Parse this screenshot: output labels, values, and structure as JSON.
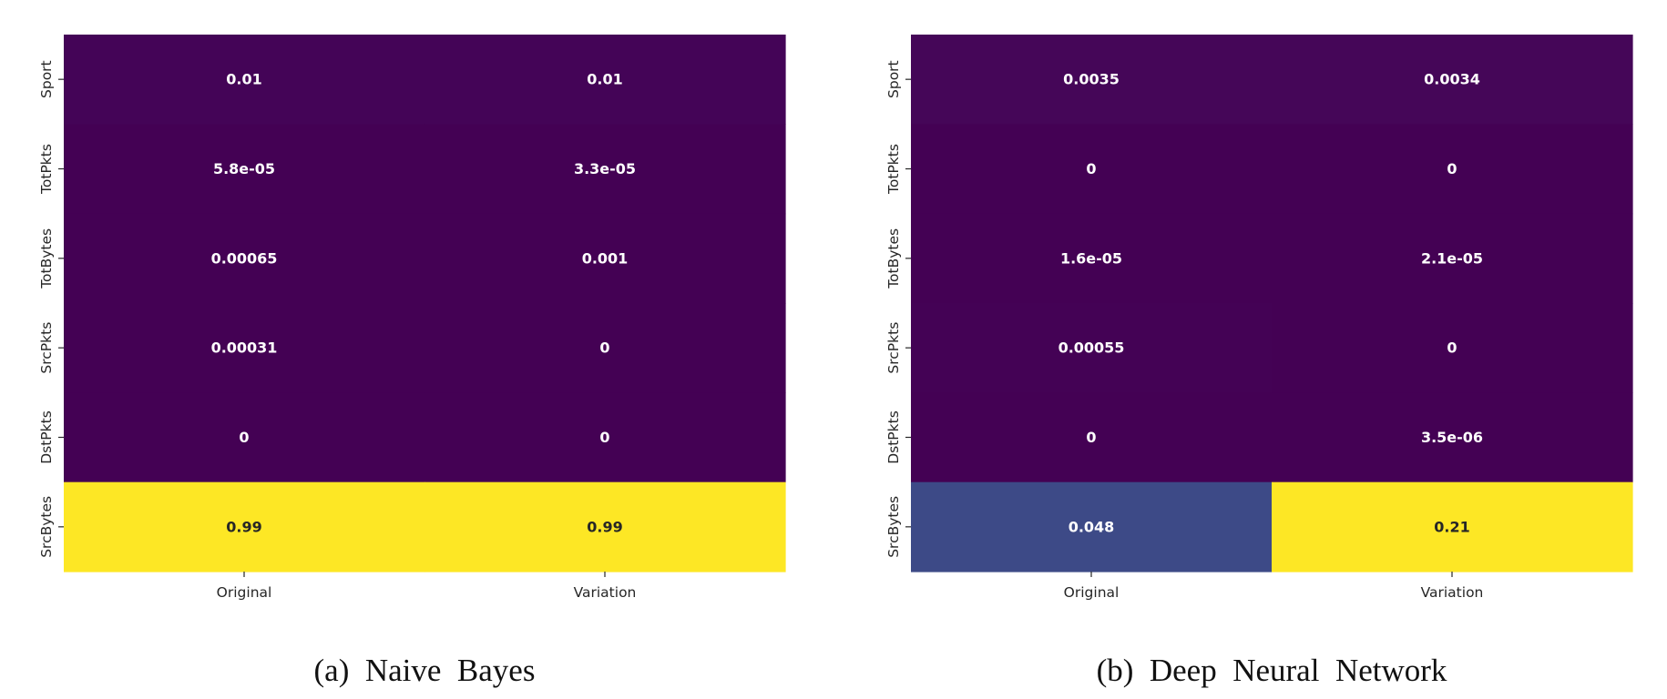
{
  "chart_data": [
    {
      "type": "heatmap",
      "caption": "(a)  Naive  Bayes",
      "x_categories": [
        "Original",
        "Variation"
      ],
      "y_categories": [
        "Sport",
        "TotPkts",
        "TotBytes",
        "SrcPkts",
        "DstPkts",
        "SrcBytes"
      ],
      "values": [
        [
          0.01,
          0.01
        ],
        [
          5.8e-05,
          3.3e-05
        ],
        [
          0.00065,
          0.001
        ],
        [
          0.00031,
          0
        ],
        [
          0,
          0
        ],
        [
          0.99,
          0.99
        ]
      ],
      "annotations": [
        [
          "0.01",
          "0.01"
        ],
        [
          "5.8e-05",
          "3.3e-05"
        ],
        [
          "0.00065",
          "0.001"
        ],
        [
          "0.00031",
          "0"
        ],
        [
          "0",
          "0"
        ],
        [
          "0.99",
          "0.99"
        ]
      ],
      "vmin": 0,
      "vmax": 0.99,
      "colormap": "viridis"
    },
    {
      "type": "heatmap",
      "caption": "(b)  Deep  Neural  Network",
      "x_categories": [
        "Original",
        "Variation"
      ],
      "y_categories": [
        "Sport",
        "TotPkts",
        "TotBytes",
        "SrcPkts",
        "DstPkts",
        "SrcBytes"
      ],
      "values": [
        [
          0.0035,
          0.0034
        ],
        [
          0,
          0
        ],
        [
          1.6e-05,
          2.1e-05
        ],
        [
          0.00055,
          0
        ],
        [
          0,
          3.5e-06
        ],
        [
          0.048,
          0.21
        ]
      ],
      "annotations": [
        [
          "0.0035",
          "0.0034"
        ],
        [
          "0",
          "0"
        ],
        [
          "1.6e-05",
          "2.1e-05"
        ],
        [
          "0.00055",
          "0"
        ],
        [
          "0",
          "3.5e-06"
        ],
        [
          "0.048",
          "0.21"
        ]
      ],
      "vmin": 0,
      "vmax": 0.21,
      "colormap": "viridis"
    }
  ]
}
